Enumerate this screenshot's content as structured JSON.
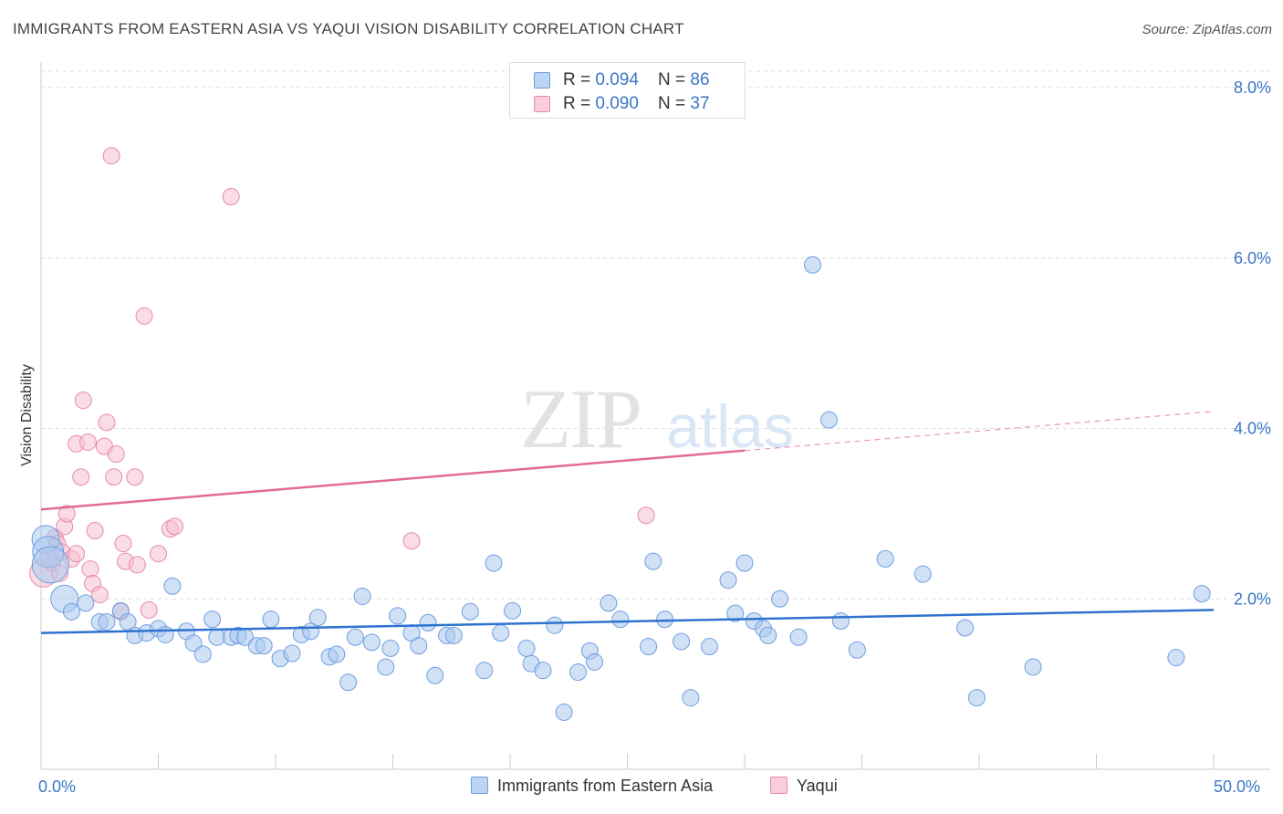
{
  "title": "IMMIGRANTS FROM EASTERN ASIA VS YAQUI VISION DISABILITY CORRELATION CHART",
  "source": "Source: ZipAtlas.com",
  "legend": {
    "row1": {
      "r_label": "R = ",
      "r_value": "0.094",
      "n_label": "N = ",
      "n_value": "86"
    },
    "row2": {
      "r_label": "R = ",
      "r_value": "0.090",
      "n_label": "N = ",
      "n_value": "37"
    }
  },
  "bottom_legend": {
    "series1": "Immigrants from Eastern Asia",
    "series2": "Yaqui"
  },
  "colors": {
    "blue_fill": "#a9c8ef",
    "blue_stroke": "#6f9ee0",
    "blue_line": "#2f72d0",
    "pink_fill": "#f6bfd0",
    "pink_stroke": "#e98aa8",
    "pink_line": "#e26b96",
    "tick_text": "#3a76c4",
    "grid": "#dddddd"
  },
  "chart_data": {
    "type": "scatter",
    "title": "IMMIGRANTS FROM EASTERN ASIA VS YAQUI VISION DISABILITY CORRELATION CHART",
    "xlabel": "",
    "ylabel": "Vision Disability",
    "xlim": [
      0,
      50
    ],
    "ylim": [
      0,
      8
    ],
    "x_ticks": [
      "0.0%",
      "50.0%"
    ],
    "y_ticks": [
      {
        "value": 2,
        "label": "2.0%"
      },
      {
        "value": 4,
        "label": "4.0%"
      },
      {
        "value": 6,
        "label": "6.0%"
      },
      {
        "value": 8,
        "label": "8.0%"
      }
    ],
    "grid": true,
    "legend_position": "top-center",
    "series": [
      {
        "name": "Immigrants from Eastern Asia",
        "r": 0.094,
        "n": 86,
        "trend": {
          "x0": 0,
          "y0": 1.6,
          "x1": 50,
          "y1": 1.87
        },
        "points": [
          [
            0.2,
            2.7,
            1
          ],
          [
            0.3,
            2.55,
            2
          ],
          [
            0.4,
            2.4,
            3
          ],
          [
            1.0,
            2.0,
            1
          ],
          [
            1.3,
            1.85,
            0
          ],
          [
            1.9,
            1.95,
            0
          ],
          [
            2.5,
            1.73,
            0
          ],
          [
            2.8,
            1.73,
            0
          ],
          [
            3.4,
            1.86,
            0
          ],
          [
            3.7,
            1.73,
            0
          ],
          [
            4.0,
            1.57,
            0
          ],
          [
            4.5,
            1.6,
            0
          ],
          [
            5.0,
            1.65,
            0
          ],
          [
            5.3,
            1.58,
            0
          ],
          [
            5.6,
            2.15,
            0
          ],
          [
            6.2,
            1.62,
            0
          ],
          [
            6.5,
            1.48,
            0
          ],
          [
            6.9,
            1.35,
            0
          ],
          [
            7.3,
            1.76,
            0
          ],
          [
            7.5,
            1.55,
            0
          ],
          [
            8.1,
            1.55,
            0
          ],
          [
            8.4,
            1.57,
            0
          ],
          [
            8.7,
            1.55,
            0
          ],
          [
            9.2,
            1.45,
            0
          ],
          [
            9.5,
            1.45,
            0
          ],
          [
            9.8,
            1.76,
            0
          ],
          [
            10.2,
            1.3,
            0
          ],
          [
            10.7,
            1.36,
            0
          ],
          [
            11.1,
            1.58,
            0
          ],
          [
            11.5,
            1.62,
            0
          ],
          [
            11.8,
            1.78,
            0
          ],
          [
            12.3,
            1.32,
            0
          ],
          [
            12.6,
            1.35,
            0
          ],
          [
            13.1,
            1.02,
            0
          ],
          [
            13.4,
            1.55,
            0
          ],
          [
            13.7,
            2.03,
            0
          ],
          [
            14.1,
            1.49,
            0
          ],
          [
            14.7,
            1.2,
            0
          ],
          [
            14.9,
            1.42,
            0
          ],
          [
            15.2,
            1.8,
            0
          ],
          [
            15.8,
            1.6,
            0
          ],
          [
            16.1,
            1.45,
            0
          ],
          [
            16.5,
            1.72,
            0
          ],
          [
            16.8,
            1.1,
            0
          ],
          [
            17.3,
            1.57,
            0
          ],
          [
            17.6,
            1.57,
            0
          ],
          [
            18.3,
            1.85,
            0
          ],
          [
            18.9,
            1.16,
            0
          ],
          [
            19.3,
            2.42,
            0
          ],
          [
            19.6,
            1.6,
            0
          ],
          [
            20.1,
            1.86,
            0
          ],
          [
            20.7,
            1.42,
            0
          ],
          [
            20.9,
            1.24,
            0
          ],
          [
            21.4,
            1.16,
            0
          ],
          [
            21.9,
            1.69,
            0
          ],
          [
            22.3,
            0.67,
            0
          ],
          [
            22.9,
            1.14,
            0
          ],
          [
            23.4,
            1.39,
            0
          ],
          [
            23.6,
            1.26,
            0
          ],
          [
            24.2,
            1.95,
            0
          ],
          [
            24.7,
            1.76,
            0
          ],
          [
            25.9,
            1.44,
            0
          ],
          [
            26.1,
            2.44,
            0
          ],
          [
            26.6,
            1.76,
            0
          ],
          [
            27.3,
            1.5,
            0
          ],
          [
            27.7,
            0.84,
            0
          ],
          [
            28.5,
            1.44,
            0
          ],
          [
            29.3,
            2.22,
            0
          ],
          [
            29.6,
            1.83,
            0
          ],
          [
            30.0,
            2.42,
            0
          ],
          [
            30.4,
            1.74,
            0
          ],
          [
            30.8,
            1.65,
            0
          ],
          [
            31.0,
            1.57,
            0
          ],
          [
            31.5,
            2.0,
            0
          ],
          [
            32.3,
            1.55,
            0
          ],
          [
            32.9,
            5.92,
            0
          ],
          [
            33.6,
            4.1,
            0
          ],
          [
            34.1,
            1.74,
            0
          ],
          [
            34.8,
            1.4,
            0
          ],
          [
            36.0,
            2.47,
            0
          ],
          [
            37.6,
            2.29,
            0
          ],
          [
            39.4,
            1.66,
            0
          ],
          [
            39.9,
            0.84,
            0
          ],
          [
            42.3,
            1.2,
            0
          ],
          [
            48.4,
            1.31,
            0
          ],
          [
            49.5,
            2.06,
            0
          ]
        ]
      },
      {
        "name": "Yaqui",
        "r": 0.09,
        "n": 37,
        "trend_solid": {
          "x0": 0,
          "y0": 3.05,
          "x1": 30,
          "y1": 3.74
        },
        "trend_dashed": {
          "x0": 30,
          "y0": 3.74,
          "x1": 50,
          "y1": 4.2
        },
        "points": [
          [
            0.1,
            2.3,
            1
          ],
          [
            0.5,
            2.42,
            0
          ],
          [
            0.6,
            2.72,
            0
          ],
          [
            0.7,
            2.65,
            0
          ],
          [
            0.9,
            2.55,
            0
          ],
          [
            1.0,
            2.85,
            0
          ],
          [
            1.1,
            3.0,
            0
          ],
          [
            1.3,
            2.47,
            0
          ],
          [
            1.5,
            2.53,
            0
          ],
          [
            1.5,
            3.82,
            0
          ],
          [
            1.7,
            3.43,
            0
          ],
          [
            1.8,
            4.33,
            0
          ],
          [
            2.0,
            3.84,
            0
          ],
          [
            2.1,
            2.35,
            0
          ],
          [
            2.2,
            2.18,
            0
          ],
          [
            2.3,
            2.8,
            0
          ],
          [
            2.5,
            2.05,
            0
          ],
          [
            2.7,
            3.79,
            0
          ],
          [
            2.8,
            4.07,
            0
          ],
          [
            3.0,
            7.2,
            0
          ],
          [
            3.1,
            3.43,
            0
          ],
          [
            3.2,
            3.7,
            0
          ],
          [
            3.4,
            1.85,
            0
          ],
          [
            3.5,
            2.65,
            0
          ],
          [
            3.6,
            2.44,
            0
          ],
          [
            4.0,
            3.43,
            0
          ],
          [
            4.1,
            2.4,
            0
          ],
          [
            4.4,
            5.32,
            0
          ],
          [
            4.6,
            1.87,
            0
          ],
          [
            5.0,
            2.53,
            0
          ],
          [
            5.5,
            2.82,
            0
          ],
          [
            5.7,
            2.85,
            0
          ],
          [
            8.1,
            6.72,
            0
          ],
          [
            15.8,
            2.68,
            0
          ],
          [
            25.8,
            2.98,
            0
          ],
          [
            0.3,
            2.48,
            0
          ],
          [
            0.8,
            2.3,
            0
          ]
        ]
      }
    ]
  }
}
